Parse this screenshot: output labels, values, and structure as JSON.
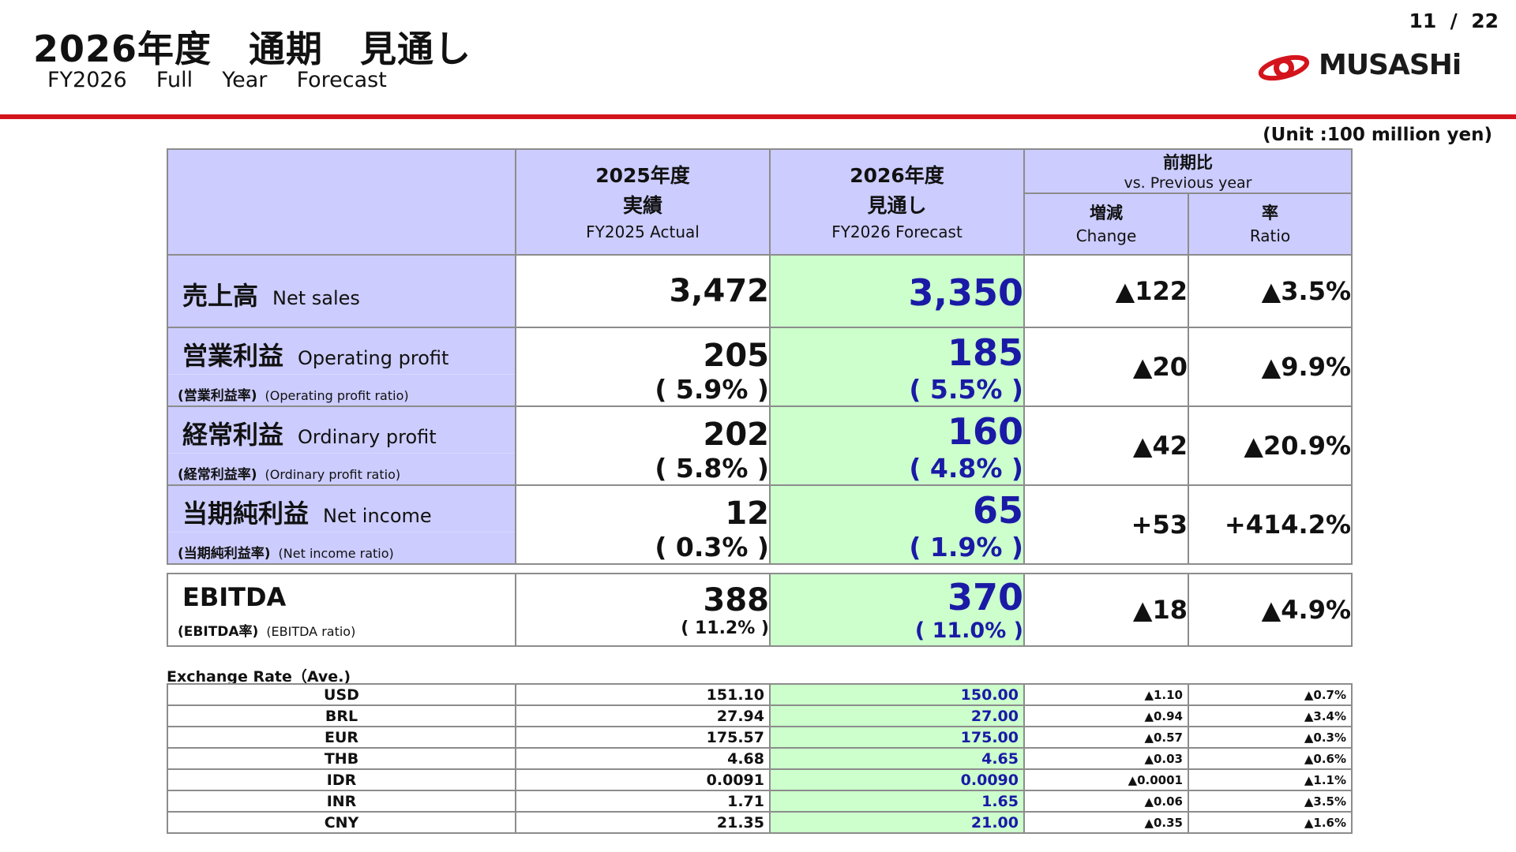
{
  "header": {
    "title_jp": "2026年度　通期　見通し",
    "title_en": "FY2026  Full  Year  Forecast",
    "page": "11  /  22",
    "logo_text": "MUSASHi",
    "unit": "(Unit :100 million yen)"
  },
  "columns": {
    "actual_jp1": "2025年度",
    "actual_jp2": "実績",
    "actual_en": "FY2025 Actual",
    "forecast_jp1": "2026年度",
    "forecast_jp2": "見通し",
    "forecast_en": "FY2026 Forecast",
    "compare_jp": "前期比",
    "compare_en": "vs. Previous year",
    "change_jp": "増減",
    "change_en": "Change",
    "ratio_jp": "率",
    "ratio_en": "Ratio"
  },
  "rows": [
    {
      "jp": "売上高",
      "en": "Net sales",
      "actual": "3,472",
      "forecast": "3,350",
      "change": "▲122",
      "ratio": "▲3.5%"
    },
    {
      "jp": "営業利益",
      "en": "Operating profit",
      "sub_jp": "(営業利益率)",
      "sub_en": "(Operating profit ratio)",
      "actual": "205",
      "actual_pct": "( 5.9% )",
      "forecast": "185",
      "forecast_pct": "( 5.5% )",
      "change": "▲20",
      "ratio": "▲9.9%"
    },
    {
      "jp": "経常利益",
      "en": "Ordinary profit",
      "sub_jp": "(経常利益率)",
      "sub_en": "(Ordinary profit ratio)",
      "actual": "202",
      "actual_pct": "( 5.8% )",
      "forecast": "160",
      "forecast_pct": "( 4.8% )",
      "change": "▲42",
      "ratio": "▲20.9%"
    },
    {
      "jp": "当期純利益",
      "en": "Net income",
      "sub_jp": "(当期純利益率)",
      "sub_en": "(Net income ratio)",
      "actual": "12",
      "actual_pct": "( 0.3% )",
      "forecast": "65",
      "forecast_pct": "( 1.9% )",
      "change": "+53",
      "ratio": "+414.2%"
    }
  ],
  "ebitda": {
    "label": "EBITDA",
    "sub_jp": "(EBITDA率)",
    "sub_en": "(EBITDA ratio)",
    "actual": "388",
    "actual_pct": "( 11.2% )",
    "forecast": "370",
    "forecast_pct": "( 11.0% )",
    "change": "▲18",
    "ratio": "▲4.9%"
  },
  "fx": {
    "caption": "Exchange Rate（Ave.)",
    "rows": [
      {
        "cur": "USD",
        "actual": "151.10",
        "forecast": "150.00",
        "change": "▲1.10",
        "ratio": "▲0.7%"
      },
      {
        "cur": "BRL",
        "actual": "27.94",
        "forecast": "27.00",
        "change": "▲0.94",
        "ratio": "▲3.4%"
      },
      {
        "cur": "EUR",
        "actual": "175.57",
        "forecast": "175.00",
        "change": "▲0.57",
        "ratio": "▲0.3%"
      },
      {
        "cur": "THB",
        "actual": "4.68",
        "forecast": "4.65",
        "change": "▲0.03",
        "ratio": "▲0.6%"
      },
      {
        "cur": "IDR",
        "actual": "0.0091",
        "forecast": "0.0090",
        "change": "▲0.0001",
        "ratio": "▲1.1%"
      },
      {
        "cur": "INR",
        "actual": "1.71",
        "forecast": "1.65",
        "change": "▲0.06",
        "ratio": "▲3.5%"
      },
      {
        "cur": "CNY",
        "actual": "21.35",
        "forecast": "21.00",
        "change": "▲0.35",
        "ratio": "▲1.6%"
      }
    ]
  },
  "colors": {
    "accent_red": "#d4141c",
    "header_fill": "#ccccff",
    "forecast_fill": "#ccffcc",
    "forecast_text": "#1a1aa6"
  }
}
